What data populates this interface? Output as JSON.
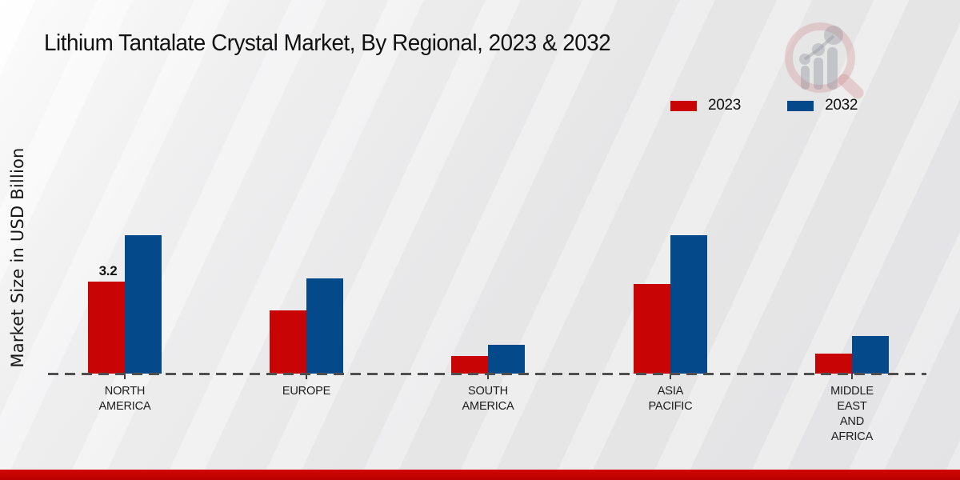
{
  "title": "Lithium Tantalate Crystal Market, By Regional, 2023 & 2032",
  "y_axis_label": "Market Size in USD Billion",
  "legend": [
    {
      "label": "2023",
      "color": "#c80404"
    },
    {
      "label": "2032",
      "color": "#04498a"
    }
  ],
  "watermark_icon": "magnifier-bar-chart-logo",
  "colors": {
    "series_2023": "#c80404",
    "series_2032": "#04498a",
    "axis_line": "#4f4f4f",
    "footer_strip": "#c00000",
    "text": "#1a1a1a"
  },
  "chart_data": {
    "type": "bar",
    "title": "Lithium Tantalate Crystal Market, By Regional, 2023 & 2032",
    "xlabel": "",
    "ylabel": "Market Size in USD Billion",
    "ylim": [
      0,
      5.2
    ],
    "grid": false,
    "legend_position": "top-right",
    "baseline_style": "dashed",
    "categories": [
      "NORTH AMERICA",
      "EUROPE",
      "SOUTH AMERICA",
      "ASIA PACIFIC",
      "MIDDLE EAST AND AFRICA"
    ],
    "category_lines": [
      [
        "NORTH",
        "AMERICA"
      ],
      [
        "EUROPE"
      ],
      [
        "SOUTH",
        "AMERICA"
      ],
      [
        "ASIA",
        "PACIFIC"
      ],
      [
        "MIDDLE",
        "EAST",
        "AND",
        "AFRICA"
      ]
    ],
    "series": [
      {
        "name": "2023",
        "color": "#c80404",
        "values": [
          3.2,
          2.2,
          0.6,
          3.1,
          0.7
        ]
      },
      {
        "name": "2032",
        "color": "#04498a",
        "values": [
          4.8,
          3.3,
          1.0,
          4.8,
          1.3
        ]
      }
    ],
    "data_labels": [
      {
        "series": "2023",
        "category": "NORTH AMERICA",
        "value": "3.2"
      }
    ]
  }
}
